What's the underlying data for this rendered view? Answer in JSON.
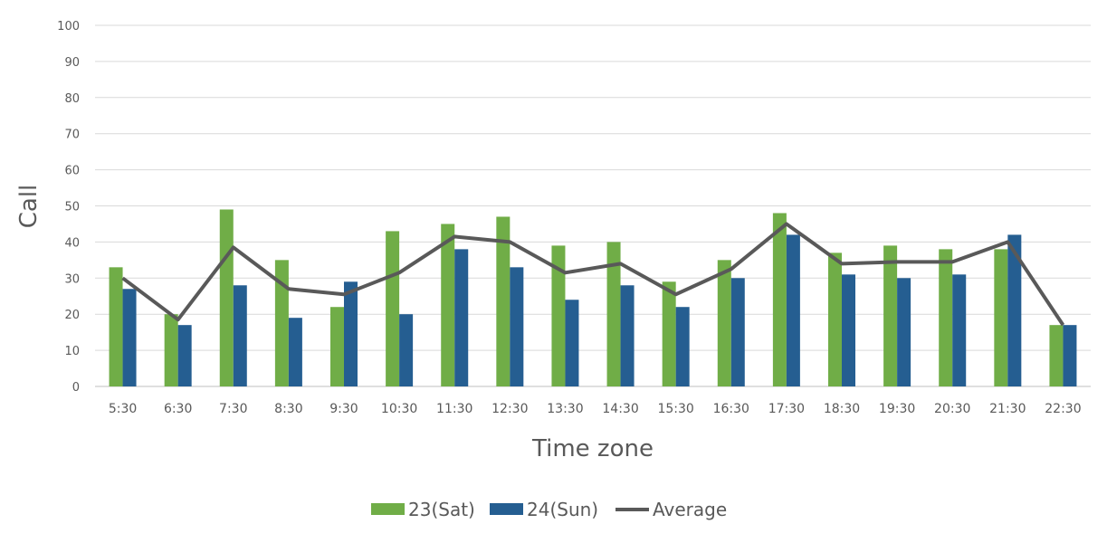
{
  "chart_data": {
    "type": "bar",
    "title": "",
    "xlabel": "Time zone",
    "ylabel": "Call",
    "ylim": [
      0,
      100
    ],
    "yticks": [
      0,
      10,
      20,
      30,
      40,
      50,
      60,
      70,
      80,
      90,
      100
    ],
    "grid": true,
    "legend_position": "bottom",
    "categories": [
      "5:30",
      "6:30",
      "7:30",
      "8:30",
      "9:30",
      "10:30",
      "11:30",
      "12:30",
      "13:30",
      "14:30",
      "15:30",
      "16:30",
      "17:30",
      "18:30",
      "19:30",
      "20:30",
      "21:30",
      "22:30"
    ],
    "series": [
      {
        "name": "23(Sat)",
        "type": "bar",
        "color": "#70ad47",
        "values": [
          33,
          20,
          49,
          35,
          22,
          43,
          45,
          47,
          39,
          40,
          29,
          35,
          48,
          37,
          39,
          38,
          38,
          17
        ]
      },
      {
        "name": "24(Sun)",
        "type": "bar",
        "color": "#255e91",
        "values": [
          27,
          17,
          28,
          19,
          29,
          20,
          38,
          33,
          24,
          28,
          22,
          30,
          42,
          31,
          30,
          31,
          42,
          17
        ]
      },
      {
        "name": "Average",
        "type": "line",
        "color": "#595959",
        "values": [
          30,
          18.5,
          38.5,
          27,
          25.5,
          31.5,
          41.5,
          40,
          31.5,
          34,
          25.5,
          32.5,
          45,
          34,
          34.5,
          34.5,
          40,
          17
        ]
      }
    ]
  }
}
